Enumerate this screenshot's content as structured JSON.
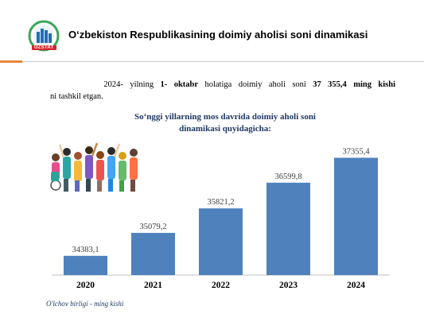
{
  "header": {
    "logo_text": "UZSTAT",
    "title": "O‘zbekiston Respublikasining doimiy aholisi soni dinamikasi"
  },
  "intro": {
    "p1": "2024- yilning ",
    "b1": "1- oktabr",
    "p2": " holatiga doimiy aholi soni ",
    "b2": "37 355,4 ming kishi",
    "p3": "ni tashkil etgan."
  },
  "subtitle": {
    "line1": "So‘nggi yillarning mos davrida doimiy aholi soni",
    "line2": "dinamikasi quyidagicha:"
  },
  "chart_data": {
    "type": "bar",
    "categories": [
      "2020",
      "2021",
      "2022",
      "2023",
      "2024"
    ],
    "values": [
      34383.1,
      35079.2,
      35821.2,
      36599.8,
      37355.4
    ],
    "labels": [
      "34383,1",
      "35079,2",
      "35821,2",
      "36599,8",
      "37355,4"
    ],
    "title": "So‘nggi yillarning mos davrida doimiy aholi soni dinamikasi quyidagicha:",
    "ylim": [
      33800,
      37800
    ],
    "grid": false,
    "bar_color": "#4f81bd"
  },
  "footer": {
    "unit": "O'lchov birligi - ming kishi"
  },
  "colors": {
    "accent": "#e5883b",
    "bar": "#4f81bd",
    "logo_red": "#d9252a",
    "logo_green": "#3aa65a",
    "logo_blue": "#1f6fb8"
  }
}
